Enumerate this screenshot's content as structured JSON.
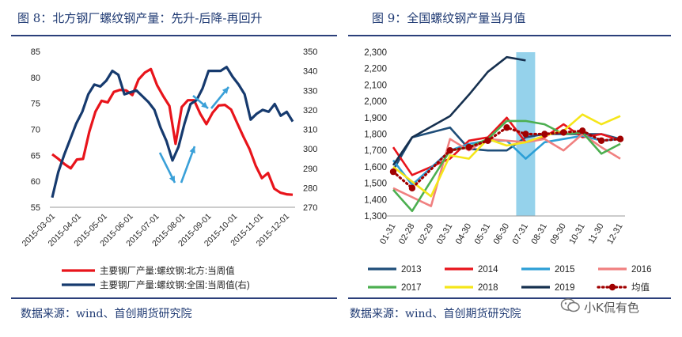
{
  "left_panel": {
    "title": "图 8：北方钢厂螺纹钢产量：先升-后降-再回升",
    "source": "数据来源：wind、首创期货研究院"
  },
  "right_panel": {
    "title": "图 9：全国螺纹钢产量当月值",
    "source": "数据来源：wind、首创期货研究院"
  },
  "watermark": {
    "text": "小K侃有色",
    "icon": "wechat-bubble-icon"
  },
  "chart_data": [
    {
      "type": "line",
      "x_labels": [
        "2015-03-01",
        "2015-04-01",
        "2015-05-01",
        "2015-06-01",
        "2015-07-01",
        "2015-08-01",
        "2015-09-01",
        "2015-10-01",
        "2015-11-01",
        "2015-12-01"
      ],
      "ylim_left": [
        55,
        85
      ],
      "yticks_left": [
        55,
        60,
        65,
        70,
        75,
        80,
        85
      ],
      "ylim_right": [
        270,
        350
      ],
      "yticks_right": [
        270,
        280,
        290,
        300,
        310,
        320,
        330,
        340,
        350
      ],
      "grid": false,
      "legend_position": "bottom",
      "series": [
        {
          "name": "主要钢厂产量:螺纹钢:北方:当周值",
          "axis": "left",
          "color": "#e8141b",
          "values": [
            65.2,
            64.3,
            63.3,
            62.5,
            64.2,
            64.3,
            69.5,
            73.4,
            75.5,
            75.2,
            77.2,
            77.6,
            77.5,
            76.6,
            79.6,
            80.9,
            81.6,
            78.5,
            76.4,
            74.5,
            67.2,
            74.3,
            75.6,
            75.6,
            73.0,
            71.0,
            73.2,
            74.6,
            74.7,
            73.8,
            71.2,
            68.6,
            66.2,
            63.0,
            60.6,
            61.6,
            58.6,
            57.8,
            57.5,
            57.4
          ]
        },
        {
          "name": "主要钢厂产量:螺纹钢:全国:当周值(右)",
          "axis": "right",
          "color": "#163a6e",
          "values": [
            275,
            288,
            297,
            305,
            313,
            319,
            328,
            333,
            332,
            335,
            340,
            338,
            328,
            329,
            330,
            327,
            324,
            320,
            311,
            304,
            294,
            301,
            313,
            323,
            325,
            331,
            340,
            340,
            340,
            342,
            337,
            333,
            328,
            315,
            318,
            320,
            319,
            323,
            317,
            319,
            314
          ]
        }
      ],
      "annotations": [
        {
          "type": "arrow",
          "direction": "down-right",
          "color": "#3aa0d8"
        },
        {
          "type": "arrow",
          "direction": "up-right",
          "color": "#3aa0d8"
        },
        {
          "type": "arrow",
          "direction": "down-right",
          "color": "#3aa0d8"
        },
        {
          "type": "arrow",
          "direction": "up-right",
          "color": "#3aa0d8"
        }
      ]
    },
    {
      "type": "line",
      "categories": [
        "01-31",
        "02-28",
        "02-29",
        "03-31",
        "04-30",
        "05-31",
        "06-30",
        "07-31",
        "08-31",
        "09-30",
        "10-31",
        "11-30",
        "12-31"
      ],
      "ylim": [
        1300,
        2300
      ],
      "yticks": [
        1300,
        1400,
        1500,
        1600,
        1700,
        1800,
        1900,
        2000,
        2100,
        2200,
        2300
      ],
      "tick_labels": [
        "1,300",
        "1,400",
        "1,500",
        "1,600",
        "1,700",
        "1,800",
        "1,900",
        "2,000",
        "2,100",
        "2,200",
        "2,300"
      ],
      "grid": false,
      "highlight_category": "07-31",
      "highlight_color": "#8fd0ea",
      "legend_position": "bottom",
      "series": [
        {
          "name": "2013",
          "color": "#1f4e79",
          "dotted": false,
          "values": [
            1580,
            1780,
            null,
            1840,
            1710,
            1700,
            1700,
            1780,
            1800,
            1800,
            1800,
            1800,
            1770
          ]
        },
        {
          "name": "2014",
          "color": "#e8141b",
          "dotted": false,
          "values": [
            1720,
            1550,
            null,
            1650,
            1760,
            1780,
            1900,
            1750,
            1780,
            1860,
            1780,
            1800,
            1760
          ]
        },
        {
          "name": "2015",
          "color": "#2c9fd6",
          "dotted": false,
          "values": [
            1640,
            1490,
            null,
            1700,
            1740,
            1760,
            1760,
            1650,
            1750,
            1770,
            1790,
            1760,
            1770
          ]
        },
        {
          "name": "2016",
          "color": "#f08080",
          "dotted": false,
          "values": [
            1470,
            null,
            1360,
            1770,
            1700,
            1770,
            1760,
            1750,
            1770,
            1700,
            1800,
            1720,
            1650
          ]
        },
        {
          "name": "2017",
          "color": "#4caf50",
          "dotted": false,
          "values": [
            1460,
            1330,
            null,
            1700,
            1720,
            1770,
            1880,
            1880,
            1860,
            1800,
            1810,
            1680,
            1740
          ]
        },
        {
          "name": "2018",
          "color": "#f5e61a",
          "dotted": false,
          "values": [
            1600,
            null,
            1420,
            1670,
            1650,
            1770,
            1730,
            1750,
            1790,
            1820,
            1920,
            1860,
            1910
          ]
        },
        {
          "name": "2019",
          "color": "#16304f",
          "dotted": false,
          "values": [
            1610,
            1780,
            null,
            1910,
            2040,
            2180,
            2270,
            2250,
            null,
            null,
            null,
            null,
            null
          ]
        },
        {
          "name": "均值",
          "color": "#a00000",
          "dotted": true,
          "values": [
            1570,
            1470,
            null,
            1700,
            1720,
            1760,
            1840,
            1800,
            1800,
            1810,
            1820,
            1760,
            1770
          ]
        }
      ]
    }
  ]
}
